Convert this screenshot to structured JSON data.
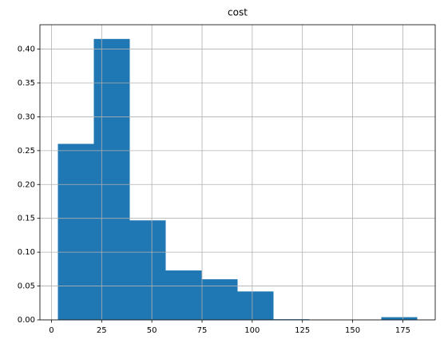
{
  "chart_data": {
    "type": "histogram",
    "title": "cost",
    "bins": [
      3.2,
      21.1,
      39.0,
      56.9,
      74.8,
      92.7,
      110.6,
      128.5,
      146.4,
      164.3,
      182.2
    ],
    "values": [
      0.26,
      0.415,
      0.147,
      0.073,
      0.06,
      0.042,
      0.001,
      0,
      0,
      0.004
    ],
    "color": "#1f77b4",
    "xlim": [
      -5.75,
      191.15
    ],
    "xticks": [
      0,
      25,
      50,
      75,
      100,
      125,
      150,
      175
    ],
    "ylim": [
      0,
      0.436
    ],
    "yticks": [
      {
        "value": 0,
        "label": "0.00"
      },
      {
        "value": 0.05,
        "label": "0.05"
      },
      {
        "value": 0.1,
        "label": "0.10"
      },
      {
        "value": 0.15,
        "label": "0.15"
      },
      {
        "value": 0.2,
        "label": "0.20"
      },
      {
        "value": 0.25,
        "label": "0.25"
      },
      {
        "value": 0.3,
        "label": "0.30"
      },
      {
        "value": 0.35,
        "label": "0.35"
      },
      {
        "value": 0.4,
        "label": "0.40"
      }
    ],
    "grid": true
  }
}
